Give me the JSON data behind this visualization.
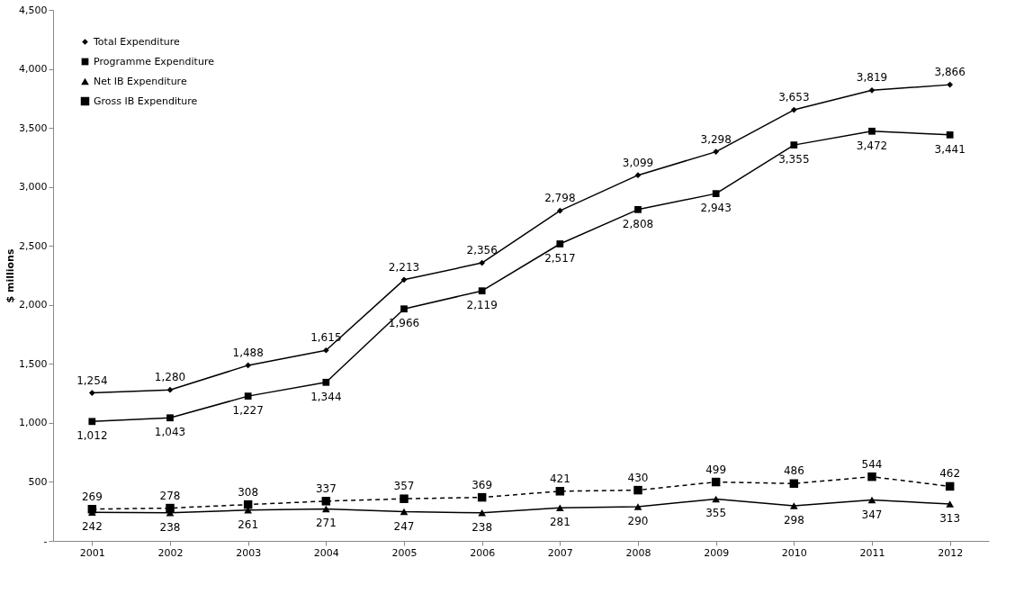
{
  "chart_data": {
    "type": "line",
    "ylabel": "$ millions",
    "categories": [
      "2001",
      "2002",
      "2003",
      "2004",
      "2005",
      "2006",
      "2007",
      "2008",
      "2009",
      "2010",
      "2011",
      "2012"
    ],
    "series": [
      {
        "name": "Total Expenditure",
        "color": "#000000",
        "marker": "diamond",
        "line_style": "solid",
        "values": [
          1254,
          1280,
          1488,
          1615,
          2213,
          2356,
          2798,
          3099,
          3298,
          3653,
          3819,
          3866
        ],
        "value_labels": [
          "1,254",
          "1,280",
          "1,488",
          "1,615",
          "2,213",
          "2,356",
          "2,798",
          "3,099",
          "3,298",
          "3,653",
          "3,819",
          "3,866"
        ]
      },
      {
        "name": "Programme Expenditure",
        "color": "#000000",
        "marker": "square",
        "line_style": "solid",
        "values": [
          1012,
          1043,
          1227,
          1344,
          1966,
          2119,
          2517,
          2808,
          2943,
          3355,
          3472,
          3441
        ],
        "value_labels": [
          "1,012",
          "1,043",
          "1,227",
          "1,344",
          "1,966",
          "2,119",
          "2,517",
          "2,808",
          "2,943",
          "3,355",
          "3,472",
          "3,441"
        ]
      },
      {
        "name": "Net IB Expenditure",
        "color": "#000000",
        "marker": "triangle",
        "line_style": "solid",
        "values": [
          242,
          238,
          261,
          271,
          247,
          238,
          281,
          290,
          355,
          298,
          347,
          313
        ],
        "value_labels": [
          "242",
          "238",
          "261",
          "271",
          "247",
          "238",
          "281",
          "290",
          "355",
          "298",
          "347",
          "313"
        ]
      },
      {
        "name": "Gross IB Expenditure",
        "color": "#000000",
        "marker": "square",
        "line_style": "dashed",
        "values": [
          269,
          278,
          308,
          337,
          357,
          369,
          421,
          430,
          499,
          486,
          544,
          462
        ],
        "value_labels": [
          "269",
          "278",
          "308",
          "337",
          "357",
          "369",
          "421",
          "430",
          "499",
          "486",
          "544",
          "462"
        ]
      }
    ],
    "ylim": [
      0,
      4500
    ],
    "yticks": [
      {
        "value": 0,
        "label": "-"
      },
      500,
      {
        "value": 1000,
        "label": "1,000"
      },
      {
        "value": 1500,
        "label": "1,500"
      },
      {
        "value": 2000,
        "label": "2,000"
      },
      {
        "value": 2500,
        "label": "2,500"
      },
      {
        "value": 3000,
        "label": "3,000"
      },
      {
        "value": 3500,
        "label": "3,500"
      },
      {
        "value": 4000,
        "label": "4,000"
      },
      {
        "value": 4500,
        "label": "4,500"
      }
    ],
    "grid": false,
    "legend": "top left"
  }
}
